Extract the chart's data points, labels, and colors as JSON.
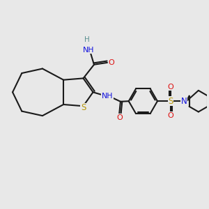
{
  "bg_color": "#e8e8e8",
  "C": "#1a1a1a",
  "H": "#5a9090",
  "N": "#1010dd",
  "O": "#dd1010",
  "S": "#b8980a",
  "bond_color": "#1a1a1a",
  "lw": 1.5
}
